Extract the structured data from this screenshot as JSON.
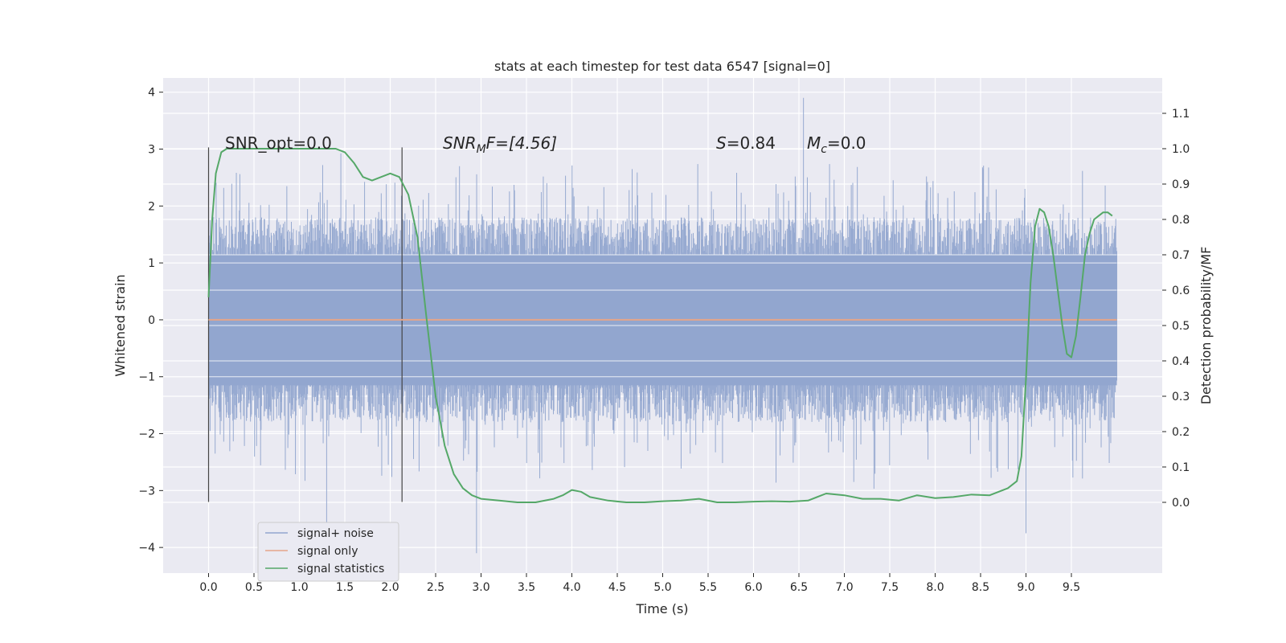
{
  "chart_data": {
    "type": "line",
    "title": "stats at each timestep for test data 6547 [signal=0]",
    "xlabel": "Time (s)",
    "ylabel_left": "Whitened strain",
    "ylabel_right": "Detection probability/MF",
    "xlim": [
      -0.5,
      10.5
    ],
    "ylim_left": [
      -4.45,
      4.25
    ],
    "ylim_right": [
      -0.2,
      1.2
    ],
    "x_ticks": [
      "0.0",
      "0.5",
      "1.0",
      "1.5",
      "2.0",
      "2.5",
      "3.0",
      "3.5",
      "4.0",
      "4.5",
      "5.0",
      "5.5",
      "6.0",
      "6.5",
      "7.0",
      "7.5",
      "8.0",
      "8.5",
      "9.0",
      "9.5"
    ],
    "y_left_ticks": [
      "4",
      "3",
      "2",
      "1",
      "0",
      "−1",
      "−2",
      "−3",
      "−4"
    ],
    "y_right_ticks": [
      "1.1",
      "1.0",
      "0.9",
      "0.8",
      "0.7",
      "0.6",
      "0.5",
      "0.4",
      "0.3",
      "0.2",
      "0.1",
      "0.0"
    ],
    "grid": true,
    "legend_position": "lower-left",
    "annotations": {
      "snr_opt": "SNR_opt=0.0",
      "snr_mf_main": "SNR",
      "snr_mf_sub": "M",
      "snr_mf_rest": "F=[4.56]",
      "s_main": "S",
      "s_rest": "=0.84",
      "mc_main": "M",
      "mc_sub": "c",
      "mc_rest": "=0.0"
    },
    "vertical_markers": [
      0.0,
      2.13
    ],
    "series": [
      {
        "name": "signal+ noise",
        "color": "#92a6cf",
        "kind": "noise",
        "x_range": [
          0.0,
          10.0
        ],
        "envelope_typical": 1.8,
        "min": -4.1,
        "max": 3.9
      },
      {
        "name": "signal only",
        "color": "#e5a58a",
        "x": [
          0.0,
          10.0
        ],
        "y": [
          0.0,
          0.0
        ]
      },
      {
        "name": "signal statistics",
        "color": "#55a868",
        "axis": "right",
        "x": [
          0.0,
          0.04,
          0.08,
          0.14,
          0.2,
          0.3,
          0.5,
          0.8,
          1.0,
          1.2,
          1.4,
          1.5,
          1.6,
          1.7,
          1.8,
          1.9,
          2.0,
          2.1,
          2.2,
          2.3,
          2.4,
          2.5,
          2.6,
          2.7,
          2.8,
          2.9,
          3.0,
          3.2,
          3.4,
          3.6,
          3.8,
          3.9,
          4.0,
          4.1,
          4.2,
          4.4,
          4.6,
          4.8,
          5.0,
          5.2,
          5.4,
          5.6,
          5.8,
          6.0,
          6.2,
          6.4,
          6.6,
          6.8,
          7.0,
          7.2,
          7.4,
          7.6,
          7.8,
          8.0,
          8.2,
          8.4,
          8.6,
          8.8,
          8.9,
          8.95,
          9.0,
          9.05,
          9.1,
          9.15,
          9.2,
          9.25,
          9.3,
          9.35,
          9.4,
          9.45,
          9.5,
          9.55,
          9.6,
          9.65,
          9.7,
          9.75,
          9.8,
          9.85,
          9.9,
          9.95
        ],
        "y": [
          0.58,
          0.8,
          0.93,
          0.99,
          1.0,
          1.0,
          1.0,
          1.0,
          1.0,
          1.0,
          1.0,
          0.99,
          0.96,
          0.92,
          0.91,
          0.92,
          0.93,
          0.92,
          0.87,
          0.75,
          0.52,
          0.3,
          0.16,
          0.08,
          0.04,
          0.02,
          0.01,
          0.005,
          0.0,
          0.0,
          0.01,
          0.02,
          0.035,
          0.03,
          0.015,
          0.005,
          0.0,
          0.0,
          0.003,
          0.005,
          0.01,
          0.0,
          0.0,
          0.002,
          0.003,
          0.002,
          0.005,
          0.025,
          0.02,
          0.01,
          0.01,
          0.005,
          0.02,
          0.012,
          0.015,
          0.022,
          0.02,
          0.04,
          0.06,
          0.13,
          0.35,
          0.62,
          0.78,
          0.83,
          0.82,
          0.78,
          0.7,
          0.6,
          0.5,
          0.42,
          0.41,
          0.47,
          0.58,
          0.7,
          0.76,
          0.8,
          0.81,
          0.82,
          0.82,
          0.81
        ]
      }
    ]
  }
}
